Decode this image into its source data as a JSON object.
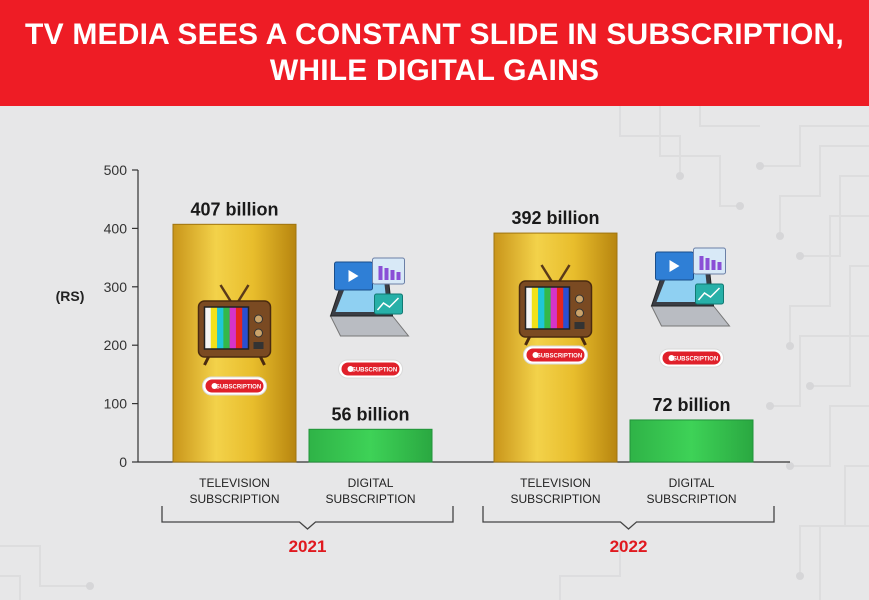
{
  "header": {
    "title_line1": "TV MEDIA SEES A CONSTANT SLIDE IN SUBSCRIPTION,",
    "title_line2": "WHILE DIGITAL GAINS"
  },
  "colors": {
    "header_bg": "#ee1c25",
    "year_text": "#e0191f",
    "tv_bar_gold": "#e2b523",
    "digital_bar_green": "#35c24d",
    "badge_red": "#e0202a"
  },
  "icons": {
    "tv": "retro-tv-icon",
    "digital": "laptop-digital-icon",
    "badge": "subscription-badge-icon"
  },
  "chart_data": {
    "type": "bar",
    "ylabel": "(RS)",
    "ylim": [
      0,
      500
    ],
    "yticks": [
      "0",
      "100",
      "200",
      "300",
      "400",
      "500"
    ],
    "grid": false,
    "legend": "none",
    "badge_label": "SUBSCRIPTION",
    "groups": [
      {
        "year": "2021",
        "bars": [
          {
            "category_line1": "TELEVISION",
            "category_line2": "SUBSCRIPTION",
            "value": 407,
            "label": "407 billion",
            "kind": "tv"
          },
          {
            "category_line1": "DIGITAL",
            "category_line2": "SUBSCRIPTION",
            "value": 56,
            "label": "56 billion",
            "kind": "digital"
          }
        ]
      },
      {
        "year": "2022",
        "bars": [
          {
            "category_line1": "TELEVISION",
            "category_line2": "SUBSCRIPTION",
            "value": 392,
            "label": "392 billion",
            "kind": "tv"
          },
          {
            "category_line1": "DIGITAL",
            "category_line2": "SUBSCRIPTION",
            "value": 72,
            "label": "72 billion",
            "kind": "digital"
          }
        ]
      }
    ]
  }
}
